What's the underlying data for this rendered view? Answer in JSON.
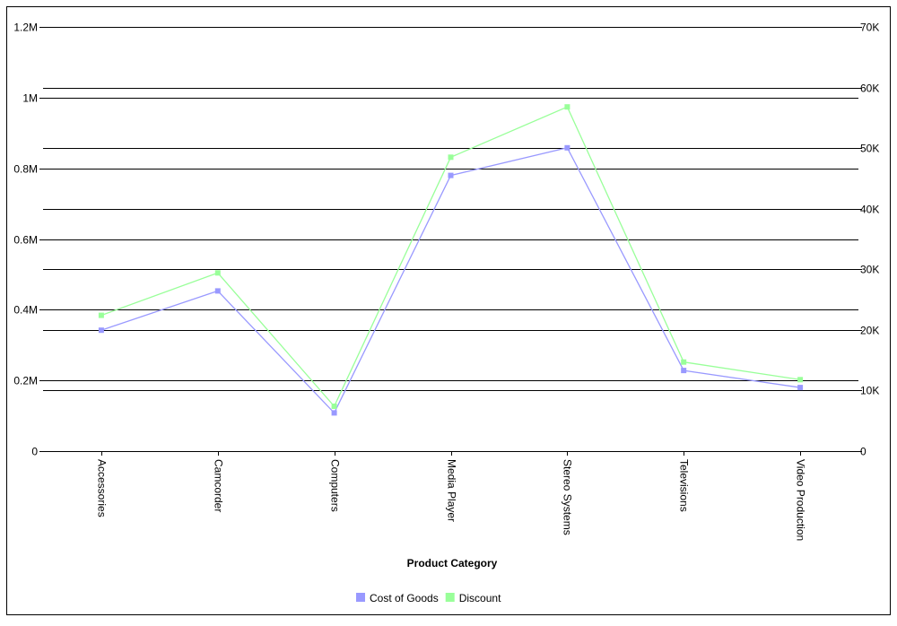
{
  "chart_data": {
    "type": "line",
    "title": "",
    "xlabel": "Product Category",
    "ylabel_left": "",
    "ylabel_right": "",
    "categories": [
      "Accessories",
      "Camcorder",
      "Computers",
      "Media Player",
      "Stereo Systems",
      "Televisions",
      "Video Production"
    ],
    "y_left": {
      "min": 0,
      "max": 1200000,
      "ticks": [
        {
          "value": 0,
          "label": "0"
        },
        {
          "value": 200000,
          "label": "0.2M"
        },
        {
          "value": 400000,
          "label": "0.4M"
        },
        {
          "value": 600000,
          "label": "0.6M"
        },
        {
          "value": 800000,
          "label": "0.8M"
        },
        {
          "value": 1000000,
          "label": "1M"
        },
        {
          "value": 1200000,
          "label": "1.2M"
        }
      ]
    },
    "y_right": {
      "min": 0,
      "max": 70000,
      "ticks": [
        {
          "value": 0,
          "label": "0"
        },
        {
          "value": 10000,
          "label": "10K"
        },
        {
          "value": 20000,
          "label": "20K"
        },
        {
          "value": 30000,
          "label": "30K"
        },
        {
          "value": 40000,
          "label": "40K"
        },
        {
          "value": 50000,
          "label": "50K"
        },
        {
          "value": 60000,
          "label": "60K"
        },
        {
          "value": 70000,
          "label": "70K"
        }
      ]
    },
    "series": [
      {
        "name": "Cost of Goods",
        "axis": "left",
        "color": "#9999ff",
        "values": [
          342000,
          453000,
          108000,
          780000,
          858000,
          228000,
          180000
        ]
      },
      {
        "name": "Discount",
        "axis": "right",
        "color": "#99ff99",
        "values": [
          22400,
          29400,
          7400,
          48500,
          56800,
          14700,
          11800
        ]
      }
    ],
    "grid": true,
    "legend_position": "bottom"
  }
}
